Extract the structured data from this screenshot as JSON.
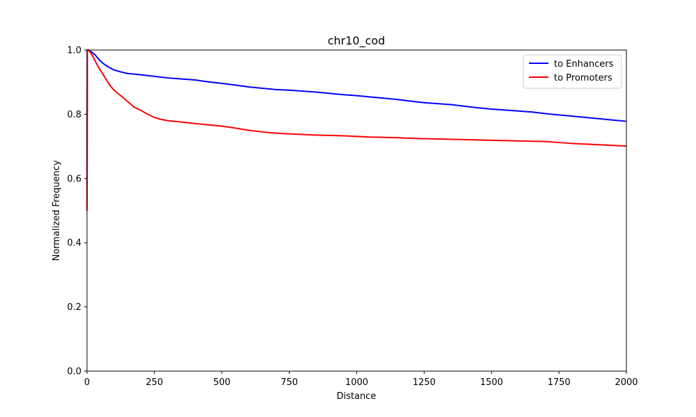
{
  "chart_data": {
    "type": "line",
    "title": "chr10_cod",
    "xlabel": "Distance",
    "ylabel": "Normalized Frequency",
    "xlim": [
      0,
      2000
    ],
    "ylim": [
      0.0,
      1.0
    ],
    "x_ticks": [
      "0",
      "250",
      "500",
      "750",
      "1000",
      "1250",
      "1500",
      "1750",
      "2000"
    ],
    "y_ticks": [
      "0.0",
      "0.2",
      "0.4",
      "0.6",
      "0.8",
      "1.0"
    ],
    "grid": false,
    "legend_position": "upper right",
    "series": [
      {
        "name": "to Enhancers",
        "color": "#0000ff",
        "x": [
          0,
          1,
          5,
          15,
          30,
          45,
          60,
          80,
          100,
          125,
          150,
          175,
          200,
          250,
          300,
          350,
          400,
          450,
          500,
          550,
          600,
          650,
          700,
          750,
          800,
          850,
          900,
          950,
          1000,
          1050,
          1100,
          1150,
          1200,
          1250,
          1300,
          1350,
          1400,
          1450,
          1500,
          1550,
          1600,
          1650,
          1700,
          1750,
          1800,
          1850,
          1900,
          1950,
          2000
        ],
        "y": [
          0.5,
          1.0,
          1.0,
          0.995,
          0.985,
          0.97,
          0.958,
          0.947,
          0.938,
          0.932,
          0.927,
          0.925,
          0.923,
          0.918,
          0.913,
          0.91,
          0.907,
          0.901,
          0.896,
          0.891,
          0.885,
          0.881,
          0.877,
          0.875,
          0.872,
          0.869,
          0.865,
          0.861,
          0.858,
          0.854,
          0.85,
          0.846,
          0.841,
          0.836,
          0.833,
          0.83,
          0.825,
          0.82,
          0.816,
          0.813,
          0.81,
          0.807,
          0.802,
          0.798,
          0.794,
          0.79,
          0.786,
          0.782,
          0.778
        ]
      },
      {
        "name": "to Promoters",
        "color": "#ff0000",
        "x": [
          0,
          1,
          5,
          15,
          25,
          40,
          55,
          70,
          85,
          100,
          125,
          150,
          175,
          200,
          225,
          250,
          275,
          300,
          350,
          400,
          450,
          500,
          550,
          600,
          650,
          700,
          750,
          800,
          850,
          900,
          950,
          1000,
          1050,
          1100,
          1150,
          1200,
          1250,
          1300,
          1350,
          1400,
          1450,
          1500,
          1550,
          1600,
          1650,
          1700,
          1750,
          1800,
          1850,
          1900,
          1950,
          2000
        ],
        "y": [
          0.5,
          1.0,
          1.0,
          0.99,
          0.975,
          0.95,
          0.93,
          0.91,
          0.89,
          0.875,
          0.858,
          0.84,
          0.822,
          0.812,
          0.8,
          0.79,
          0.784,
          0.78,
          0.776,
          0.771,
          0.767,
          0.763,
          0.757,
          0.75,
          0.745,
          0.741,
          0.739,
          0.737,
          0.735,
          0.734,
          0.733,
          0.731,
          0.729,
          0.728,
          0.727,
          0.725,
          0.724,
          0.723,
          0.722,
          0.721,
          0.72,
          0.719,
          0.718,
          0.717,
          0.716,
          0.715,
          0.712,
          0.709,
          0.707,
          0.705,
          0.703,
          0.701
        ]
      }
    ]
  }
}
